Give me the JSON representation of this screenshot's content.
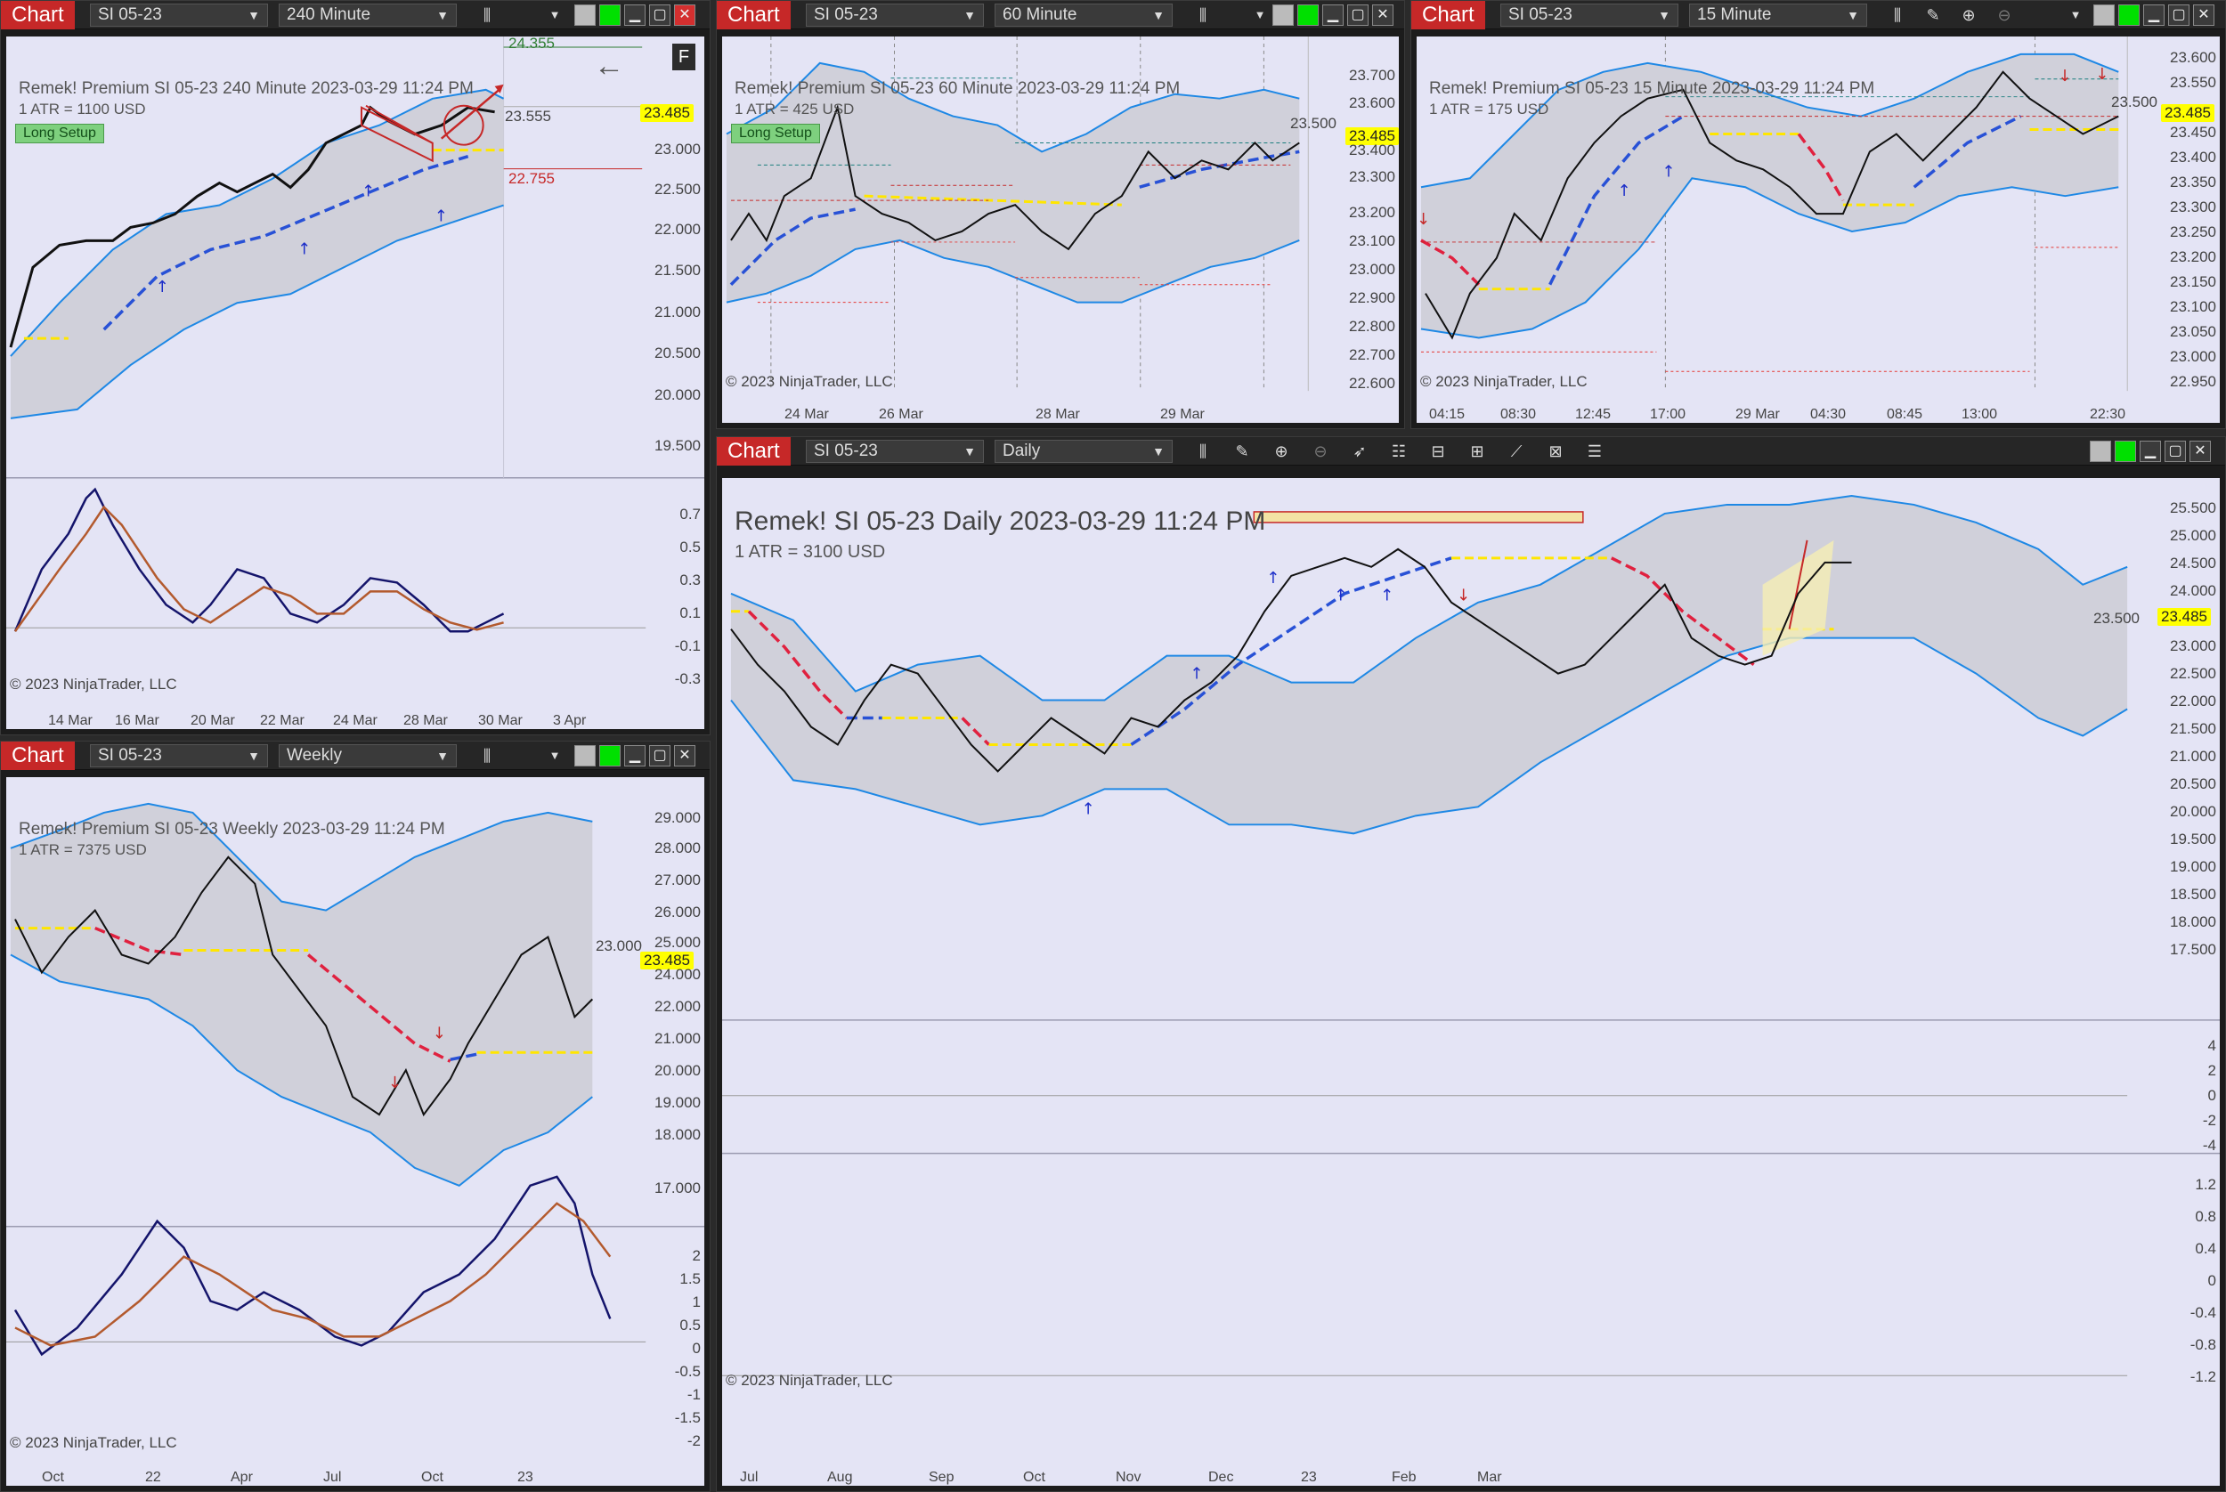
{
  "windows": [
    {
      "id": "w240",
      "chart_label": "Chart",
      "symbol": "SI 05-23",
      "interval": "240 Minute",
      "title": "Remek!  Premium  SI 05-23  240 Minute  2023-03-29 11:24 PM",
      "atr": "1 ATR = 1100 USD",
      "setup_badge": "Long Setup",
      "price_badge": "23.485",
      "yticks": [
        "24.355",
        "23.555",
        "23.000",
        "22.500",
        "22.000",
        "21.500",
        "21.000",
        "20.500",
        "20.000",
        "19.500"
      ],
      "level_labels": [
        "24.355",
        "22.755"
      ],
      "osc_ticks": [
        "0.7",
        "0.5",
        "0.3",
        "0.1",
        "-0.1",
        "-0.3"
      ],
      "xticks": [
        "14 Mar",
        "16 Mar",
        "20 Mar",
        "22 Mar",
        "24 Mar",
        "28 Mar",
        "30 Mar",
        "3 Apr"
      ],
      "copyright": "© 2023 NinjaTrader, LLC",
      "f_button": "F"
    },
    {
      "id": "w60",
      "chart_label": "Chart",
      "symbol": "SI 05-23",
      "interval": "60 Minute",
      "title": "Remek!  Premium  SI 05-23  60 Minute  2023-03-29 11:24 PM",
      "atr": "1 ATR = 425 USD",
      "setup_badge": "Long Setup",
      "price_badge": "23.485",
      "yticks": [
        "23.700",
        "23.600",
        "23.500",
        "23.400",
        "23.300",
        "23.200",
        "23.100",
        "23.000",
        "22.900",
        "22.800",
        "22.700",
        "22.600"
      ],
      "xticks": [
        "24 Mar",
        "26 Mar",
        "28 Mar",
        "29 Mar"
      ],
      "copyright": "© 2023 NinjaTrader, LLC"
    },
    {
      "id": "w15",
      "chart_label": "Chart",
      "symbol": "SI 05-23",
      "interval": "15 Minute",
      "title": "Remek!  Premium  SI 05-23  15 Minute  2023-03-29 11:24 PM",
      "atr": "1 ATR = 175 USD",
      "price_badge": "23.485",
      "yticks": [
        "23.600",
        "23.550",
        "23.500",
        "23.450",
        "23.400",
        "23.350",
        "23.300",
        "23.250",
        "23.200",
        "23.150",
        "23.100",
        "23.050",
        "23.000",
        "22.950"
      ],
      "xticks": [
        "04:15",
        "08:30",
        "12:45",
        "17:00",
        "29 Mar",
        "04:30",
        "08:45",
        "13:00",
        "22:30"
      ],
      "copyright": "© 2023 NinjaTrader, LLC"
    },
    {
      "id": "wwk",
      "chart_label": "Chart",
      "symbol": "SI 05-23",
      "interval": "Weekly",
      "title": "Remek!  Premium  SI 05-23  Weekly  2023-03-29 11:24 PM",
      "atr": "1 ATR = 7375 USD",
      "price_badge": "23.485",
      "yticks": [
        "29.000",
        "28.000",
        "27.000",
        "26.000",
        "25.000",
        "24.000",
        "23.000",
        "22.000",
        "21.000",
        "20.000",
        "19.000",
        "18.000",
        "17.000"
      ],
      "osc_ticks": [
        "2",
        "1.5",
        "1",
        "0.5",
        "0",
        "-0.5",
        "-1",
        "-1.5",
        "-2"
      ],
      "xticks": [
        "Oct",
        "22",
        "Apr",
        "Jul",
        "Oct",
        "23"
      ],
      "copyright": "© 2023 NinjaTrader, LLC"
    },
    {
      "id": "wd",
      "chart_label": "Chart",
      "symbol": "SI 05-23",
      "interval": "Daily",
      "title": "Remek!  SI 05-23  Daily  2023-03-29 11:24 PM",
      "atr": "1 ATR = 3100 USD",
      "price_badge": "23.485",
      "yticks": [
        "25.500",
        "25.000",
        "24.500",
        "24.000",
        "23.500",
        "23.000",
        "22.500",
        "22.000",
        "21.500",
        "21.000",
        "20.500",
        "20.000",
        "19.500",
        "19.000",
        "18.500",
        "18.000",
        "17.500"
      ],
      "hist_ticks": [
        "4",
        "2",
        "0",
        "-2",
        "-4"
      ],
      "osc_ticks": [
        "1.2",
        "0.8",
        "0.4",
        "0",
        "-0.4",
        "-0.8",
        "-1.2"
      ],
      "xticks": [
        "Jul",
        "Aug",
        "Sep",
        "Oct",
        "Nov",
        "Dec",
        "23",
        "Feb",
        "Mar"
      ],
      "copyright": "© 2023 NinjaTrader, LLC"
    }
  ]
}
